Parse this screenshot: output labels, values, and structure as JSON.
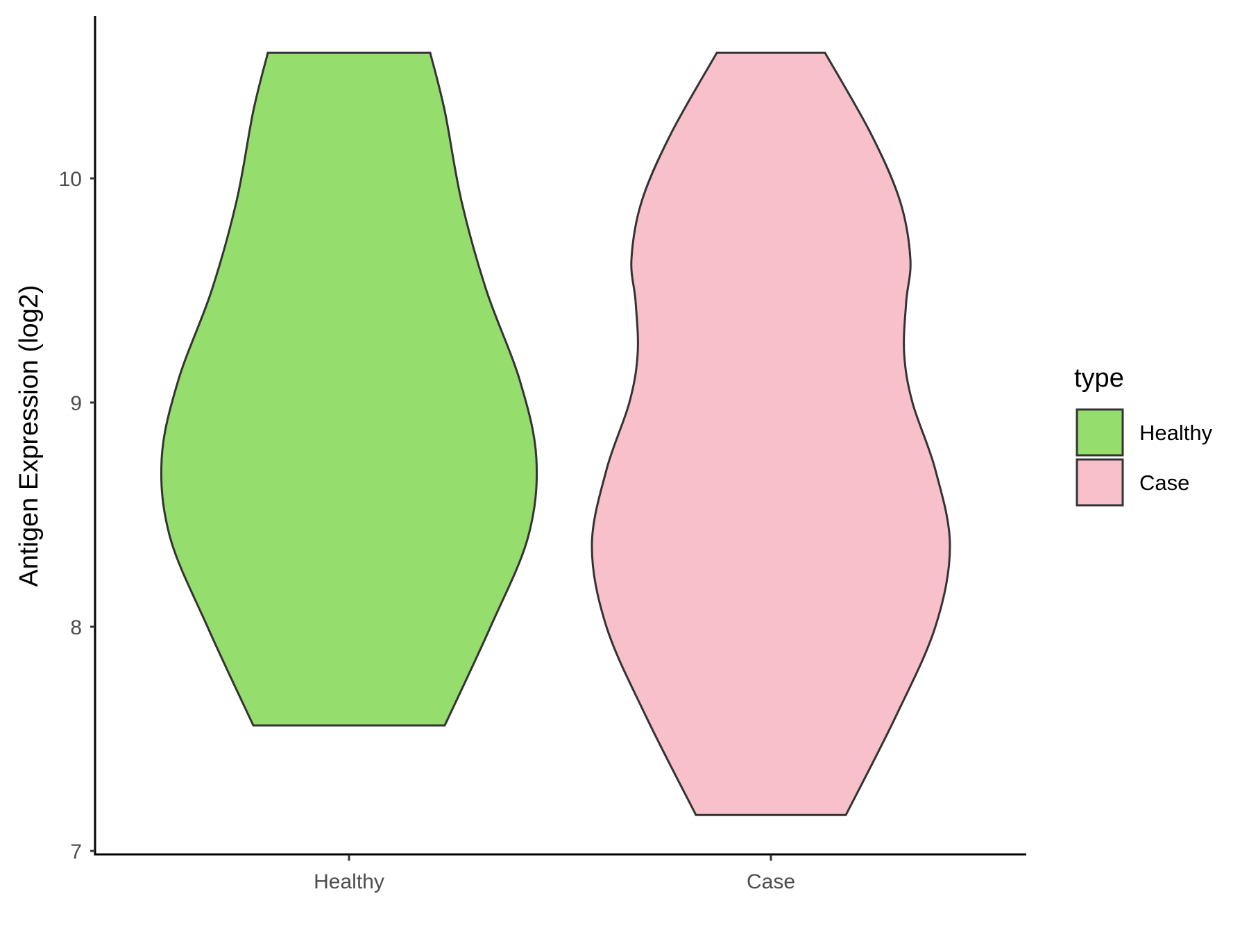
{
  "chart_data": {
    "type": "violin",
    "title": "",
    "xlabel": "",
    "ylabel": "Antigen Expression (log2)",
    "ylim": [
      7,
      10.75
    ],
    "yticks": [
      7,
      8,
      9,
      10
    ],
    "categories": [
      "Healthy",
      "Case"
    ],
    "grid": false,
    "legend": {
      "title": "type",
      "position": "right",
      "entries": [
        {
          "label": "Healthy",
          "color": "#95dd6c"
        },
        {
          "label": "Case",
          "color": "#f7c0cb"
        }
      ]
    },
    "series": [
      {
        "name": "Healthy",
        "color": "#95dd6c",
        "outline": "#333333",
        "min": 7.56,
        "max": 10.56,
        "profile": [
          {
            "y": 7.56,
            "halfwidth": 0.46
          },
          {
            "y": 8.0,
            "halfwidth": 0.68
          },
          {
            "y": 8.4,
            "halfwidth": 0.86
          },
          {
            "y": 8.75,
            "halfwidth": 0.9
          },
          {
            "y": 9.1,
            "halfwidth": 0.82
          },
          {
            "y": 9.5,
            "halfwidth": 0.66
          },
          {
            "y": 9.9,
            "halfwidth": 0.54
          },
          {
            "y": 10.3,
            "halfwidth": 0.46
          },
          {
            "y": 10.56,
            "halfwidth": 0.39
          }
        ]
      },
      {
        "name": "Case",
        "color": "#f7c0cb",
        "outline": "#333333",
        "min": 7.16,
        "max": 10.56,
        "profile": [
          {
            "y": 7.16,
            "halfwidth": 0.36
          },
          {
            "y": 7.6,
            "halfwidth": 0.6
          },
          {
            "y": 8.0,
            "halfwidth": 0.79
          },
          {
            "y": 8.36,
            "halfwidth": 0.86
          },
          {
            "y": 8.7,
            "halfwidth": 0.79
          },
          {
            "y": 9.0,
            "halfwidth": 0.68
          },
          {
            "y": 9.22,
            "halfwidth": 0.64
          },
          {
            "y": 9.45,
            "halfwidth": 0.65
          },
          {
            "y": 9.64,
            "halfwidth": 0.67
          },
          {
            "y": 9.9,
            "halfwidth": 0.62
          },
          {
            "y": 10.2,
            "halfwidth": 0.48
          },
          {
            "y": 10.56,
            "halfwidth": 0.26
          }
        ]
      }
    ]
  }
}
